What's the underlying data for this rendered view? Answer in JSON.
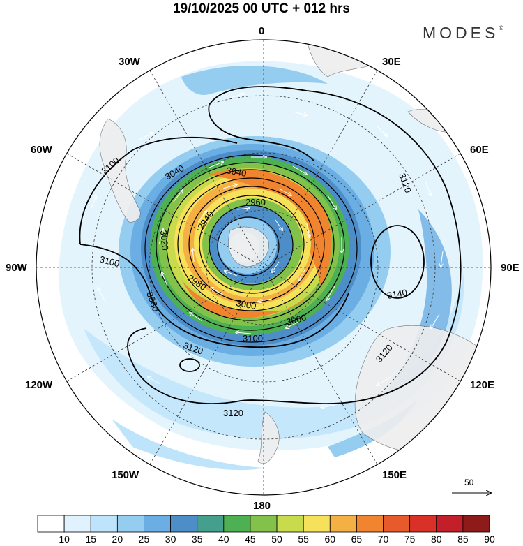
{
  "title": "19/10/2025  00 UTC  + 012 hrs",
  "brand": "MODES",
  "brand_mark": "©",
  "longitude_labels": [
    {
      "id": "lon-0",
      "text": "0"
    },
    {
      "id": "lon-30e",
      "text": "30E"
    },
    {
      "id": "lon-60e",
      "text": "60E"
    },
    {
      "id": "lon-90e",
      "text": "90E"
    },
    {
      "id": "lon-120e",
      "text": "120E"
    },
    {
      "id": "lon-150e",
      "text": "150E"
    },
    {
      "id": "lon-180",
      "text": "180"
    },
    {
      "id": "lon-150w",
      "text": "150W"
    },
    {
      "id": "lon-120w",
      "text": "120W"
    },
    {
      "id": "lon-90w",
      "text": "90W"
    },
    {
      "id": "lon-60w",
      "text": "60W"
    },
    {
      "id": "lon-30w",
      "text": "30W"
    }
  ],
  "contour_labels": [
    {
      "text": "3100"
    },
    {
      "text": "3100"
    },
    {
      "text": "3120"
    },
    {
      "text": "3120"
    },
    {
      "text": "3120"
    },
    {
      "text": "3120"
    },
    {
      "text": "3140"
    },
    {
      "text": "3080"
    },
    {
      "text": "3040"
    },
    {
      "text": "3040"
    },
    {
      "text": "3020"
    },
    {
      "text": "2960"
    },
    {
      "text": "2940"
    },
    {
      "text": "2980"
    },
    {
      "text": "3000"
    },
    {
      "text": "3060"
    },
    {
      "text": "3100"
    }
  ],
  "reference_vector": "50",
  "colorbar": {
    "ticks": [
      "10",
      "15",
      "20",
      "25",
      "30",
      "35",
      "40",
      "45",
      "50",
      "55",
      "60",
      "65",
      "70",
      "75",
      "80",
      "85",
      "90"
    ],
    "colors": [
      "#ffffff",
      "#dff2fd",
      "#bde4fa",
      "#95cdf1",
      "#6aaee3",
      "#4d8ec9",
      "#44a08c",
      "#4db053",
      "#83c24a",
      "#c8db4d",
      "#f6e15a",
      "#f4b043",
      "#f0842f",
      "#e65a2b",
      "#d93128",
      "#c21f2b",
      "#8e1a1a"
    ]
  }
}
